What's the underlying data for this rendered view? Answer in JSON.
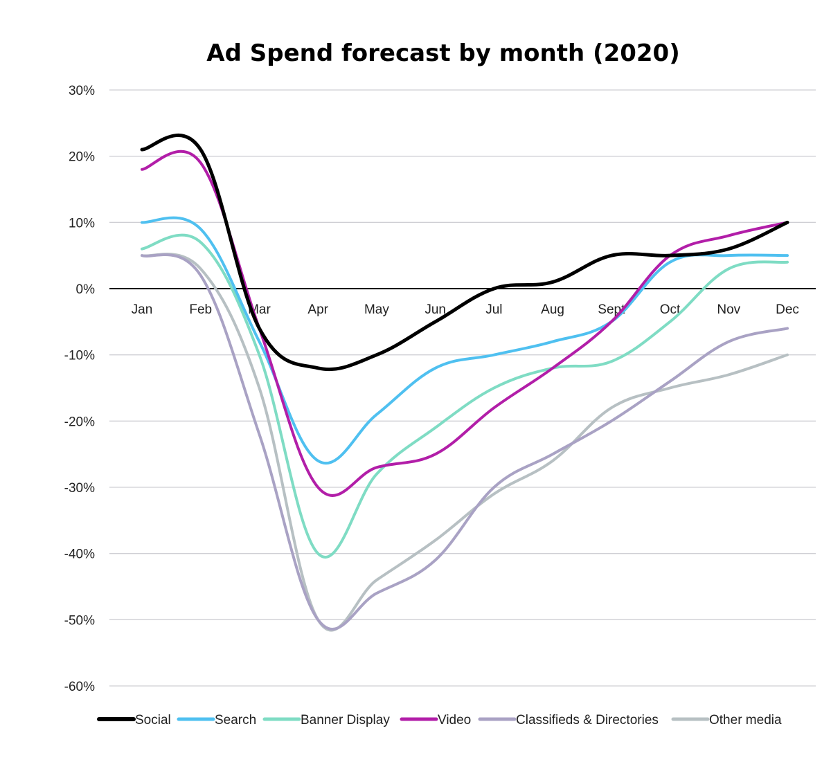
{
  "chart_data": {
    "type": "line",
    "title": "Ad Spend forecast by month (2020)",
    "xlabel": "",
    "ylabel": "",
    "categories": [
      "Jan",
      "Feb",
      "Mar",
      "Apr",
      "May",
      "Jun",
      "Jul",
      "Aug",
      "Sept",
      "Oct",
      "Nov",
      "Dec"
    ],
    "ylim": [
      -60,
      30
    ],
    "yticks": [
      30,
      20,
      10,
      0,
      -10,
      -20,
      -30,
      -40,
      -50,
      -60
    ],
    "ytick_labels": [
      "30%",
      "20%",
      "10%",
      "0%",
      "-10%",
      "-20%",
      "-30%",
      "-40%",
      "-50%",
      "-60%"
    ],
    "grid": true,
    "legend_position": "bottom",
    "smooth": true,
    "series": [
      {
        "name": "Social",
        "color": "#000000",
        "values": [
          21,
          21,
          -6,
          -12,
          -10,
          -5,
          0,
          1,
          5,
          5,
          6,
          10
        ]
      },
      {
        "name": "Search",
        "color": "#4fc0f0",
        "values": [
          10,
          9,
          -8,
          -26,
          -19,
          -12,
          -10,
          -8,
          -5,
          4,
          5,
          5
        ]
      },
      {
        "name": "Banner Display",
        "color": "#7fdcc4",
        "values": [
          6,
          7,
          -10,
          -40,
          -28,
          -21,
          -15,
          -12,
          -11,
          -5,
          3,
          4
        ]
      },
      {
        "name": "Video",
        "color": "#b21ea8",
        "values": [
          18,
          19,
          -6,
          -30,
          -27,
          -25,
          -18,
          -12,
          -5,
          5,
          8,
          10
        ]
      },
      {
        "name": "Classifieds & Directories",
        "color": "#a9a2c4",
        "values": [
          5,
          2,
          -22,
          -50,
          -46,
          -41,
          -30,
          -25,
          -20,
          -14,
          -8,
          -6
        ]
      },
      {
        "name": "Other media",
        "color": "#b7c0c3",
        "values": [
          5,
          3,
          -15,
          -50,
          -44,
          -38,
          -31,
          -26,
          -18,
          -15,
          -13,
          -10
        ]
      }
    ]
  }
}
